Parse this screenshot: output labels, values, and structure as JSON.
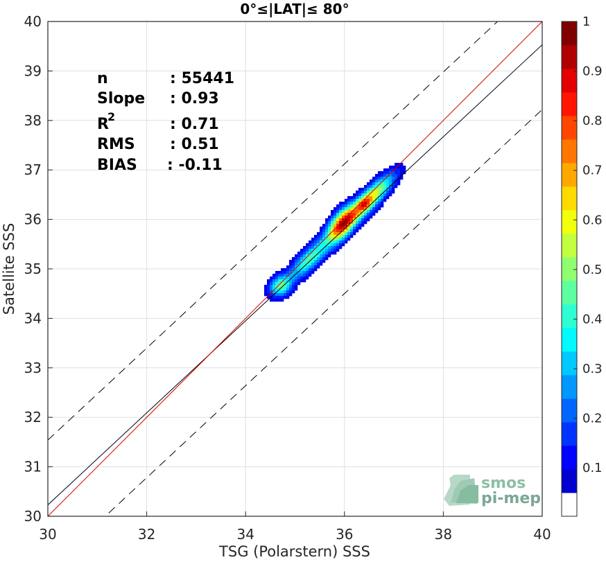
{
  "chart_data": {
    "type": "heatmap",
    "title": "0°≤|LAT|≤ 80°",
    "xlabel": "TSG (Polarstern) SSS",
    "ylabel": "Satellite SSS",
    "xlim": [
      30,
      40
    ],
    "ylim": [
      30,
      40
    ],
    "xticks": [
      "30",
      "32",
      "34",
      "36",
      "38",
      "40"
    ],
    "yticks": [
      "30",
      "31",
      "32",
      "33",
      "34",
      "35",
      "36",
      "37",
      "38",
      "39",
      "40"
    ],
    "grid": true,
    "stats": [
      {
        "label": "n",
        "value": ": 55441"
      },
      {
        "label": "Slope",
        "value": ": 0.93"
      },
      {
        "label": "R",
        "sup": "2",
        "value": ": 0.71"
      },
      {
        "label": "RMS",
        "value": ": 0.51"
      },
      {
        "label": "BIAS",
        "value": ": -0.11"
      }
    ],
    "identity_line": {
      "slope": 1,
      "intercept": 0,
      "color": "#cc0000"
    },
    "regression_line": {
      "slope": 0.93,
      "intercept": 2.33,
      "color": "#000000"
    },
    "envelope_lines": [
      {
        "slope": 0.93,
        "intercept": 3.64,
        "style": "dashed"
      },
      {
        "slope": 0.93,
        "intercept": 1.02,
        "style": "dashed"
      }
    ],
    "density_blobs": [
      {
        "x": 34.7,
        "y": 34.65,
        "sx": 0.15,
        "sy": 0.15,
        "rho": 0.2,
        "amp": 0.38
      },
      {
        "x": 35.3,
        "y": 35.2,
        "sx": 0.3,
        "sy": 0.3,
        "rho": 0.82,
        "amp": 0.4
      },
      {
        "x": 35.95,
        "y": 35.9,
        "sx": 0.2,
        "sy": 0.24,
        "rho": 0.6,
        "amp": 0.75
      },
      {
        "x": 36.5,
        "y": 36.4,
        "sx": 0.32,
        "sy": 0.33,
        "rho": 0.86,
        "amp": 0.6
      },
      {
        "x": 36.4,
        "y": 36.3,
        "sx": 0.09,
        "sy": 0.09,
        "rho": 0.3,
        "amp": 0.25
      }
    ],
    "colorbar": {
      "colormap": "jet",
      "range": [
        0,
        1
      ],
      "levels": 20,
      "ticks": [
        "0.1",
        "0.2",
        "0.3",
        "0.4",
        "0.5",
        "0.6",
        "0.7",
        "0.8",
        "0.9",
        "1"
      ]
    }
  },
  "logo": {
    "line1": "smos",
    "line2": "pi-mep",
    "color": "#8cbea6"
  }
}
